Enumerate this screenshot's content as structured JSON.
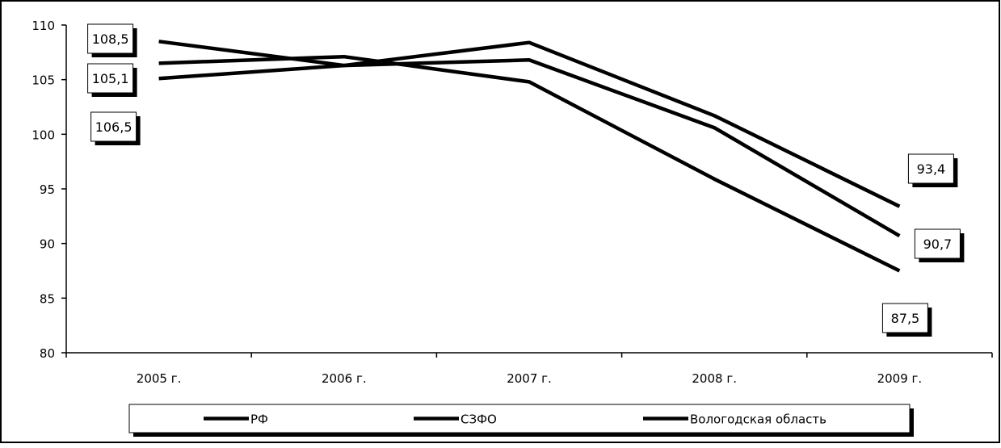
{
  "chart_data": {
    "type": "line",
    "title": "",
    "xlabel": "",
    "ylabel": "",
    "categories": [
      "2005 г.",
      "2006 г.",
      "2007 г.",
      "2008 г.",
      "2009 г."
    ],
    "ylim": [
      80,
      110
    ],
    "yticks": [
      80,
      85,
      90,
      95,
      100,
      105,
      110
    ],
    "grid": false,
    "legend_position": "bottom",
    "series": [
      {
        "name": "РФ",
        "values": [
          108.5,
          106.3,
          108.4,
          101.7,
          93.4
        ],
        "color": "#000000"
      },
      {
        "name": "СЗФО",
        "values": [
          106.5,
          107.1,
          104.8,
          95.9,
          87.5
        ],
        "color": "#000000"
      },
      {
        "name": "Вологодская область",
        "values": [
          105.1,
          106.3,
          106.8,
          100.6,
          90.7
        ],
        "color": "#000000"
      }
    ],
    "data_labels": [
      {
        "text": "108,5",
        "series": 0,
        "index": 0
      },
      {
        "text": "105,1",
        "series": 2,
        "index": 0
      },
      {
        "text": "106,5",
        "series": 1,
        "index": 0
      },
      {
        "text": "93,4",
        "series": 0,
        "index": 4
      },
      {
        "text": "90,7",
        "series": 2,
        "index": 4
      },
      {
        "text": "87,5",
        "series": 1,
        "index": 4
      }
    ]
  }
}
